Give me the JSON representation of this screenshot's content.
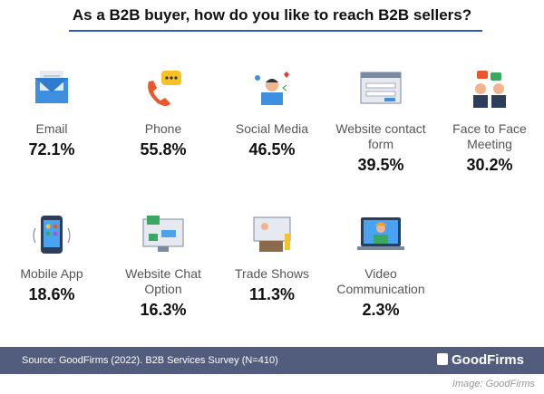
{
  "title": "As a B2B buyer, how do you like to reach B2B sellers?",
  "items": [
    {
      "label": "Email",
      "value": "72.1%"
    },
    {
      "label": "Phone",
      "value": "55.8%"
    },
    {
      "label": "Social Media",
      "value": "46.5%"
    },
    {
      "label": "Website contact form",
      "value": "39.5%"
    },
    {
      "label": "Face to Face Meeting",
      "value": "30.2%"
    },
    {
      "label": "Mobile App",
      "value": "18.6%"
    },
    {
      "label": "Website Chat Option",
      "value": "16.3%"
    },
    {
      "label": "Trade Shows",
      "value": "11.3%"
    },
    {
      "label": "Video Communication",
      "value": "2.3%"
    }
  ],
  "footer": {
    "source": "Source: GoodFirms (2022). B2B Services Survey (N=410)",
    "brand": "GoodFirms"
  },
  "credit": "Image: GoodFirms"
}
